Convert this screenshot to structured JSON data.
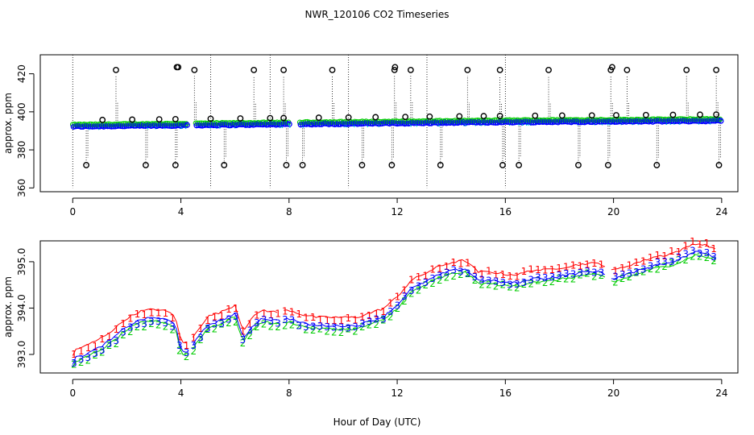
{
  "title": "NWR_120106  CO2 Timeseries",
  "xlabel": "Hour of Day (UTC)",
  "colors": {
    "flask1": "#ff0000",
    "flask2": "#00cc00",
    "flask3": "#0000ff",
    "raw": "#000000",
    "cyan": "#00cccc"
  },
  "chart_data": [
    {
      "id": "top",
      "type": "scatter",
      "title": "NWR_120106  CO2 Timeseries",
      "ylabel": "approx. ppm",
      "xlim": [
        -1.2,
        24.6
      ],
      "ylim": [
        358,
        430
      ],
      "xticks": [
        0,
        4,
        8,
        12,
        16,
        20,
        24
      ],
      "xtick_labels": [
        "0",
        "4",
        "8",
        "12",
        "16",
        "20",
        "24"
      ],
      "yticks": [
        360,
        380,
        400,
        420
      ],
      "ytick_labels": [
        "360",
        "380",
        "400",
        "420"
      ],
      "baseline": [
        [
          0,
          392.6
        ],
        [
          4,
          393.2
        ],
        [
          8,
          393.8
        ],
        [
          12,
          394.3
        ],
        [
          16,
          394.9
        ],
        [
          20,
          395.2
        ],
        [
          24,
          395.6
        ]
      ],
      "spikes_high": [
        1.6,
        4.5,
        6.7,
        7.8,
        9.6,
        11.9,
        12.5,
        14.6,
        15.8,
        17.6,
        19.9,
        20.5,
        22.7,
        23.8
      ],
      "spikes_low": [
        0.5,
        2.7,
        3.8,
        5.6,
        7.9,
        8.5,
        10.7,
        11.8,
        13.6,
        15.9,
        16.5,
        18.7,
        19.8,
        21.6,
        23.9
      ],
      "bumps": [
        1.1,
        2.2,
        3.2,
        3.8,
        5.1,
        6.2,
        7.3,
        7.8,
        9.1,
        10.2,
        11.2,
        12.3,
        13.2,
        14.3,
        15.2,
        15.8,
        17.1,
        18.1,
        19.2,
        20.1,
        21.2,
        22.2,
        23.2,
        23.8
      ],
      "gaps": [
        [
          4.2,
          4.5
        ],
        [
          8.0,
          8.4
        ]
      ]
    },
    {
      "id": "bottom",
      "type": "line",
      "ylabel": "approx. ppm",
      "xlim": [
        -1.2,
        24.6
      ],
      "ylim": [
        392.6,
        395.45
      ],
      "xticks": [
        0,
        4,
        8,
        12,
        16,
        20,
        24
      ],
      "xtick_labels": [
        "0",
        "4",
        "8",
        "12",
        "16",
        "20",
        "24"
      ],
      "yticks": [
        393.0,
        394.0,
        395.0
      ],
      "ytick_labels": [
        "393.0",
        "394.0",
        "395.0"
      ],
      "series": [
        {
          "name": "1",
          "color": "#ff0000",
          "offset": 0.18
        },
        {
          "name": "2",
          "color": "#00cc00",
          "offset": -0.07
        },
        {
          "name": "3",
          "color": "#0000ff",
          "offset": 0.0
        }
      ],
      "points": [
        [
          0,
          392.85
        ],
        [
          0.5,
          392.95
        ],
        [
          1,
          393.1
        ],
        [
          1.5,
          393.3
        ],
        [
          2,
          393.55
        ],
        [
          2.5,
          393.7
        ],
        [
          3,
          393.75
        ],
        [
          3.5,
          393.7
        ],
        [
          3.8,
          393.6
        ],
        [
          4.0,
          393.05
        ],
        [
          4.3,
          393.0
        ],
        [
          4.6,
          393.3
        ],
        [
          5.0,
          393.6
        ],
        [
          5.5,
          393.7
        ],
        [
          6.0,
          393.85
        ],
        [
          6.3,
          393.3
        ],
        [
          6.6,
          393.55
        ],
        [
          7.0,
          393.75
        ],
        [
          7.5,
          393.7
        ],
        [
          8.0,
          393.75
        ],
        [
          8.5,
          393.65
        ],
        [
          9.0,
          393.6
        ],
        [
          9.5,
          393.6
        ],
        [
          10.0,
          393.6
        ],
        [
          10.5,
          393.6
        ],
        [
          11.0,
          393.7
        ],
        [
          11.5,
          393.8
        ],
        [
          12.0,
          394.05
        ],
        [
          12.5,
          394.4
        ],
        [
          13.0,
          394.55
        ],
        [
          13.5,
          394.7
        ],
        [
          14.0,
          394.8
        ],
        [
          14.5,
          394.85
        ],
        [
          15.0,
          394.6
        ],
        [
          15.5,
          394.6
        ],
        [
          16.0,
          394.55
        ],
        [
          16.5,
          394.55
        ],
        [
          17.0,
          394.65
        ],
        [
          17.5,
          394.65
        ],
        [
          18.0,
          394.7
        ],
        [
          18.5,
          394.75
        ],
        [
          19.0,
          394.8
        ],
        [
          19.5,
          394.8
        ],
        [
          20.0,
          394.65
        ],
        [
          20.5,
          394.75
        ],
        [
          21.0,
          394.85
        ],
        [
          21.5,
          394.95
        ],
        [
          22.0,
          395.0
        ],
        [
          22.5,
          395.1
        ],
        [
          23.0,
          395.25
        ],
        [
          23.5,
          395.2
        ],
        [
          23.8,
          395.1
        ]
      ],
      "gaps": [
        [
          4.3,
          4.4
        ],
        [
          7.6,
          7.8
        ],
        [
          19.7,
          19.9
        ]
      ]
    }
  ]
}
